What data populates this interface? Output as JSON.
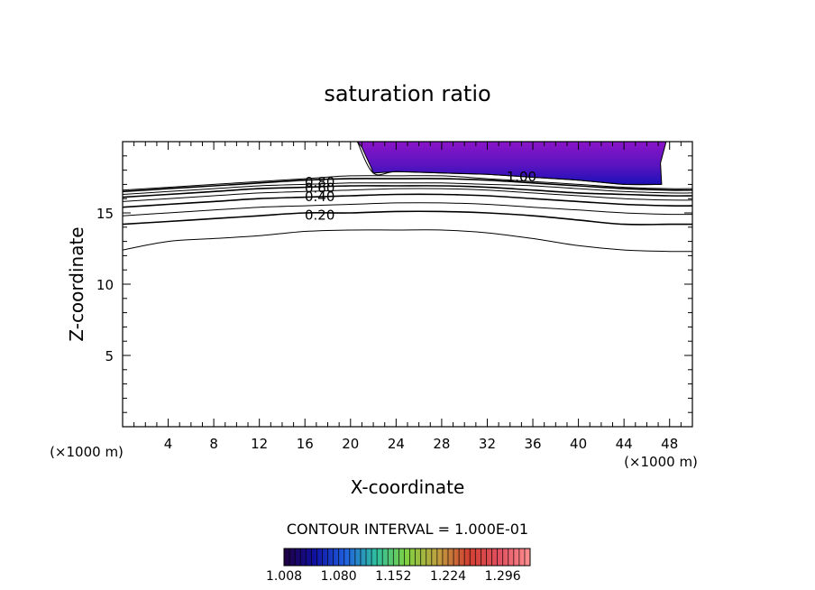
{
  "chart_data": {
    "type": "contour",
    "title": "saturation ratio",
    "xlabel": "X-coordinate",
    "ylabel": "Z-coordinate",
    "x_unit_label": "(×1000 m)",
    "x_unit_label_right": "(×1000 m)",
    "xlim": [
      0,
      50
    ],
    "ylim": [
      0,
      20
    ],
    "x_ticks": [
      "4",
      "8",
      "12",
      "16",
      "20",
      "24",
      "28",
      "32",
      "36",
      "40",
      "44",
      "48"
    ],
    "y_ticks": [
      "5",
      "10",
      "15"
    ],
    "contour_interval_label": "CONTOUR INTERVAL = 1.000E-01",
    "contour_lines": [
      {
        "level": 0.1,
        "label": "",
        "x": [
          0,
          4,
          8,
          12,
          16,
          20,
          24,
          28,
          32,
          36,
          40,
          44,
          48,
          50
        ],
        "z": [
          12.4,
          13.0,
          13.2,
          13.4,
          13.7,
          13.8,
          13.8,
          13.8,
          13.6,
          13.2,
          12.7,
          12.4,
          12.3,
          12.3
        ]
      },
      {
        "level": 0.2,
        "label": "0.20",
        "x": [
          0,
          4,
          8,
          12,
          16,
          20,
          24,
          28,
          32,
          36,
          40,
          44,
          48,
          50
        ],
        "z": [
          14.2,
          14.4,
          14.6,
          14.8,
          15.0,
          15.0,
          15.1,
          15.1,
          15.0,
          14.8,
          14.5,
          14.2,
          14.2,
          14.2
        ]
      },
      {
        "level": 0.3,
        "label": "",
        "x": [
          0,
          4,
          8,
          12,
          16,
          20,
          24,
          28,
          32,
          36,
          40,
          44,
          48,
          50
        ],
        "z": [
          14.8,
          15.0,
          15.2,
          15.4,
          15.5,
          15.6,
          15.7,
          15.7,
          15.6,
          15.4,
          15.2,
          15.0,
          14.9,
          14.9
        ]
      },
      {
        "level": 0.4,
        "label": "0.40",
        "x": [
          0,
          4,
          8,
          12,
          16,
          20,
          24,
          28,
          32,
          36,
          40,
          44,
          48,
          50
        ],
        "z": [
          15.4,
          15.6,
          15.8,
          16.0,
          16.1,
          16.2,
          16.3,
          16.3,
          16.2,
          16.0,
          15.8,
          15.6,
          15.5,
          15.5
        ]
      },
      {
        "level": 0.5,
        "label": "",
        "x": [
          0,
          4,
          8,
          12,
          16,
          20,
          24,
          28,
          32,
          36,
          40,
          44,
          48,
          50
        ],
        "z": [
          15.8,
          16.0,
          16.2,
          16.4,
          16.5,
          16.6,
          16.7,
          16.7,
          16.6,
          16.4,
          16.2,
          16.0,
          15.9,
          15.9
        ]
      },
      {
        "level": 0.6,
        "label": "0.60",
        "x": [
          0,
          4,
          8,
          12,
          16,
          20,
          24,
          28,
          32,
          36,
          40,
          44,
          48,
          50
        ],
        "z": [
          16.1,
          16.3,
          16.5,
          16.7,
          16.8,
          16.9,
          16.9,
          16.9,
          16.8,
          16.6,
          16.4,
          16.3,
          16.2,
          16.2
        ]
      },
      {
        "level": 0.7,
        "label": "",
        "x": [
          0,
          4,
          8,
          12,
          16,
          20,
          24,
          28,
          32,
          36,
          40,
          44,
          48,
          50
        ],
        "z": [
          16.3,
          16.5,
          16.7,
          16.9,
          17.0,
          17.1,
          17.1,
          17.1,
          17.0,
          16.9,
          16.7,
          16.5,
          16.4,
          16.4
        ]
      },
      {
        "level": 0.8,
        "label": "0.80",
        "x": [
          0,
          4,
          8,
          12,
          16,
          20,
          24,
          28,
          32,
          36,
          40,
          44,
          48,
          50
        ],
        "z": [
          16.5,
          16.7,
          16.9,
          17.1,
          17.3,
          17.4,
          17.4,
          17.4,
          17.3,
          17.1,
          16.9,
          16.7,
          16.6,
          16.6
        ]
      },
      {
        "level": 0.9,
        "label": "",
        "x": [
          0,
          4,
          8,
          12,
          16,
          20,
          24,
          28,
          32,
          36,
          40,
          44,
          48,
          50
        ],
        "z": [
          16.6,
          16.8,
          17.0,
          17.2,
          17.4,
          17.6,
          17.6,
          17.6,
          17.4,
          17.2,
          17.0,
          16.8,
          16.7,
          16.7
        ]
      },
      {
        "level": 1.0,
        "label": "1.00",
        "x": [
          20.6,
          22,
          24,
          28,
          32,
          36,
          40,
          44,
          47.3
        ],
        "z": [
          20.0,
          17.8,
          17.9,
          17.8,
          17.7,
          17.5,
          17.3,
          17.0,
          17.0
        ]
      }
    ],
    "line_labels": [
      {
        "text": "0.80",
        "x": 17.3,
        "z": 17.2
      },
      {
        "text": "0.60",
        "x": 17.3,
        "z": 16.8
      },
      {
        "text": "0.40",
        "x": 17.3,
        "z": 16.2
      },
      {
        "text": "0.20",
        "x": 17.3,
        "z": 14.9
      },
      {
        "text": "1.00",
        "x": 35.0,
        "z": 17.6
      }
    ],
    "filled_region": {
      "description_levels": "saturation ratio > 1",
      "outline_x": [
        20.6,
        21.0,
        21.8,
        22.0,
        24.0,
        28.0,
        32.0,
        36.0,
        40.0,
        44.0,
        47.3,
        47.2,
        47.7
      ],
      "outline_z": [
        20.0,
        19.6,
        18.2,
        17.8,
        17.9,
        17.8,
        17.7,
        17.5,
        17.3,
        17.0,
        17.0,
        18.5,
        20.0
      ]
    },
    "colorbar": {
      "tick_labels": [
        "1.008",
        "1.080",
        "1.152",
        "1.224",
        "1.296"
      ],
      "min": 1.008,
      "max": 1.332,
      "colors": [
        "#200040",
        "#1010a0",
        "#2060e0",
        "#30c0a0",
        "#80d040",
        "#c0a040",
        "#d04030",
        "#e05060",
        "#ff9090"
      ]
    },
    "fill_colors": {
      "low": "#8a14c8",
      "mid": "#5a14c0",
      "high": "#2410c0",
      "peak": "#1410b0"
    }
  }
}
